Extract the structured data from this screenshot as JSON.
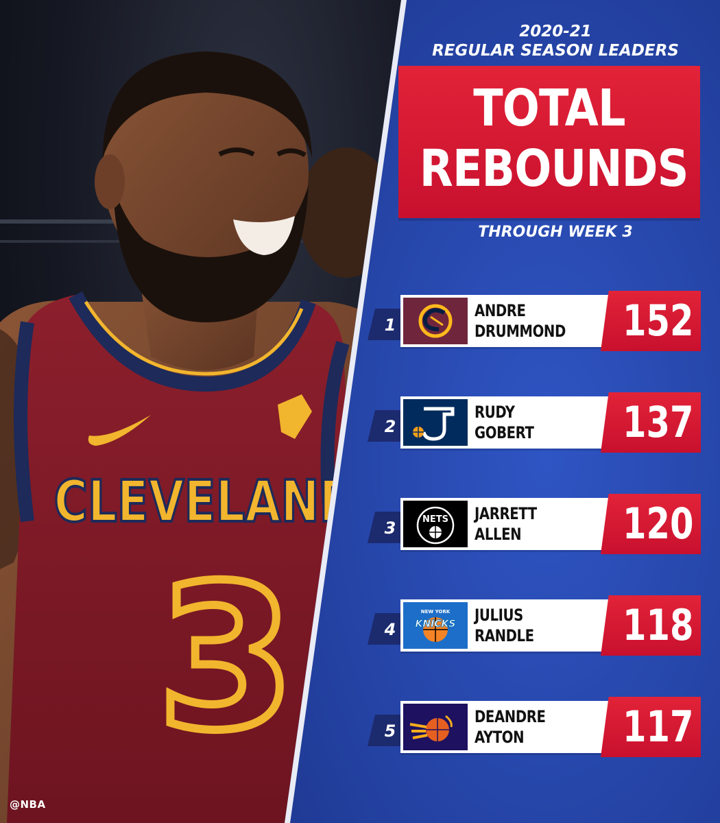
{
  "header": {
    "season": "2020-21",
    "label": "REGULAR SEASON LEADERS",
    "title_line1": "TOTAL",
    "title_line2": "REBOUNDS",
    "subtitle": "THROUGH WEEK 3"
  },
  "photo": {
    "jersey_text": "CLEVELAND",
    "jersey_number": "3"
  },
  "credit": "@NBA",
  "colors": {
    "panel_blue": "#2a4bb0",
    "accent_red": "#c8102e",
    "rank_tab": "#1c2a6e"
  },
  "leaders": [
    {
      "rank": "1",
      "first": "ANDRE",
      "last": "DRUMMOND",
      "value": "152",
      "team_icon": "cavaliers-logo-icon"
    },
    {
      "rank": "2",
      "first": "RUDY",
      "last": "GOBERT",
      "value": "137",
      "team_icon": "jazz-logo-icon"
    },
    {
      "rank": "3",
      "first": "JARRETT",
      "last": "ALLEN",
      "value": "120",
      "team_icon": "nets-logo-icon"
    },
    {
      "rank": "4",
      "first": "JULIUS",
      "last": "RANDLE",
      "value": "118",
      "team_icon": "knicks-logo-icon"
    },
    {
      "rank": "5",
      "first": "DEANDRE",
      "last": "AYTON",
      "value": "117",
      "team_icon": "suns-logo-icon"
    }
  ],
  "logo_text": {
    "nets": "NETS",
    "knicks": "KNICKS",
    "knicks_top": "NEW YORK"
  }
}
